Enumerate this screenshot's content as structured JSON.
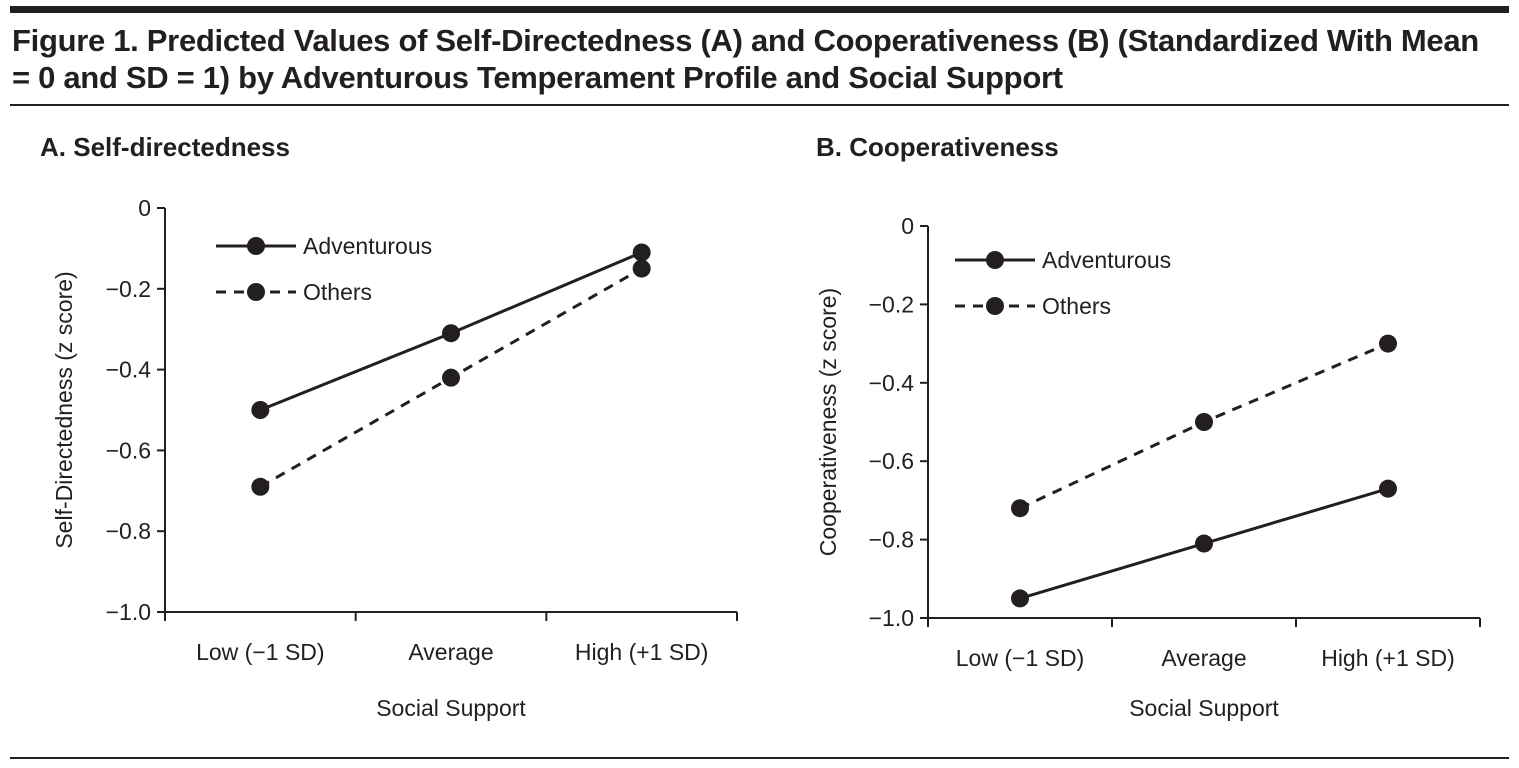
{
  "figure_title": "Figure 1. Predicted Values of Self-Directedness (A) and Cooperativeness (B) (Standardized With Mean = 0 and SD = 1) by Adventurous Temperament Profile and Social Support",
  "chart_data": [
    {
      "type": "line",
      "title": "A. Self-directedness",
      "xlabel": "Social Support",
      "ylabel": "Self-Directedness (z score)",
      "categories": [
        "Low (−1 SD)",
        "Average",
        "High (+1 SD)"
      ],
      "ylim": [
        -1.0,
        0
      ],
      "yticks": [
        "0",
        "−0.2",
        "−0.4",
        "−0.6",
        "−0.8",
        "−1.0"
      ],
      "legend_position": "top-left",
      "grid": false,
      "series": [
        {
          "name": "Adventurous",
          "style": "solid",
          "values": [
            -0.5,
            -0.31,
            -0.11
          ]
        },
        {
          "name": "Others",
          "style": "dashed",
          "values": [
            -0.69,
            -0.42,
            -0.15
          ]
        }
      ]
    },
    {
      "type": "line",
      "title": "B. Cooperativeness",
      "xlabel": "Social Support",
      "ylabel": "Cooperativeness (z score)",
      "categories": [
        "Low (−1 SD)",
        "Average",
        "High (+1 SD)"
      ],
      "ylim": [
        -1.0,
        0
      ],
      "yticks": [
        "0",
        "−0.2",
        "−0.4",
        "−0.6",
        "−0.8",
        "−1.0"
      ],
      "legend_position": "top-left",
      "grid": false,
      "series": [
        {
          "name": "Adventurous",
          "style": "solid",
          "values": [
            -0.95,
            -0.81,
            -0.67
          ]
        },
        {
          "name": "Others",
          "style": "dashed",
          "values": [
            -0.72,
            -0.5,
            -0.3
          ]
        }
      ]
    }
  ]
}
